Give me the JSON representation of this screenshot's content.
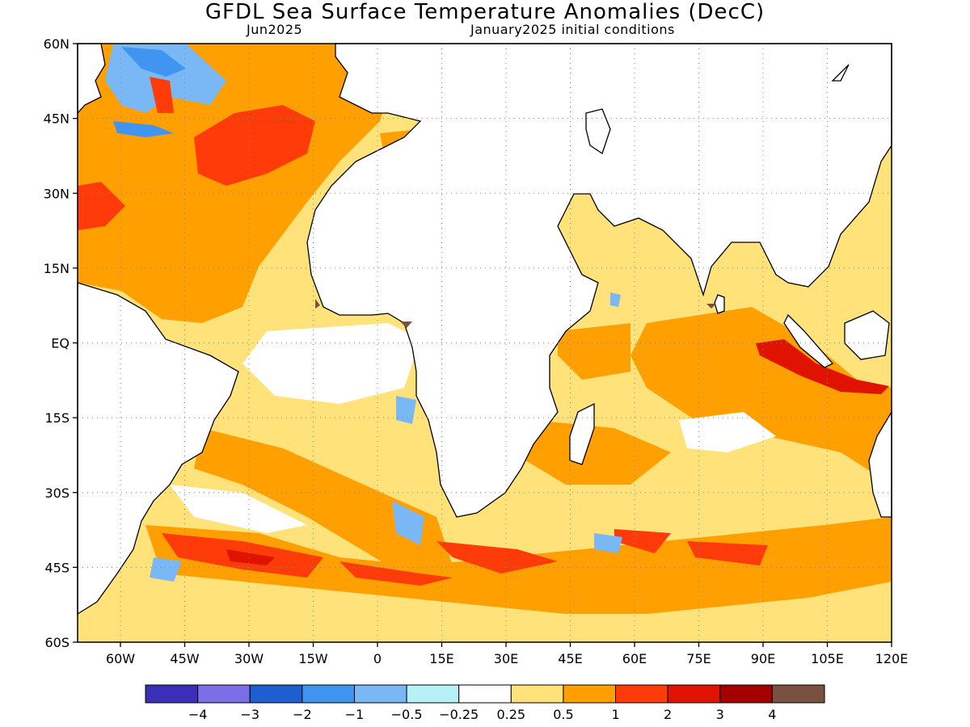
{
  "title": "GFDL Sea Surface Temperature Anomalies (DecC)",
  "subtitle_left": "Jun2025",
  "subtitle_right": "January2025 initial conditions",
  "lat_labels": [
    "60N",
    "45N",
    "30N",
    "15N",
    "EQ",
    "15S",
    "30S",
    "45S",
    "60S"
  ],
  "lon_labels": [
    "60W",
    "45W",
    "30W",
    "15W",
    "0",
    "15E",
    "30E",
    "45E",
    "60E",
    "75E",
    "90E",
    "105E",
    "120E"
  ],
  "colorbar": {
    "labels": [
      "−4",
      "−3",
      "−2",
      "−1",
      "−0.5",
      "−0.25",
      "0.25",
      "0.5",
      "1",
      "2",
      "3",
      "4"
    ],
    "colors": [
      "#3b2fb8",
      "#7b6ee6",
      "#1e5fd0",
      "#3f95f0",
      "#79b8f5",
      "#b8f0f8",
      "#ffffff",
      "#ffe27a",
      "#ff9f00",
      "#ff3b0a",
      "#e01300",
      "#a50000",
      "#7a5040"
    ]
  },
  "anomaly_colors": {
    "strong_cold": "#3f95f0",
    "cold": "#79b8f5",
    "weak_cold": "#b8f0f8",
    "weak_warm": "#ffe27a",
    "warm": "#ff9f00",
    "hot": "#ff3b0a",
    "very_hot": "#e01300",
    "extreme": "#7a5040",
    "land": "#ffffff"
  }
}
